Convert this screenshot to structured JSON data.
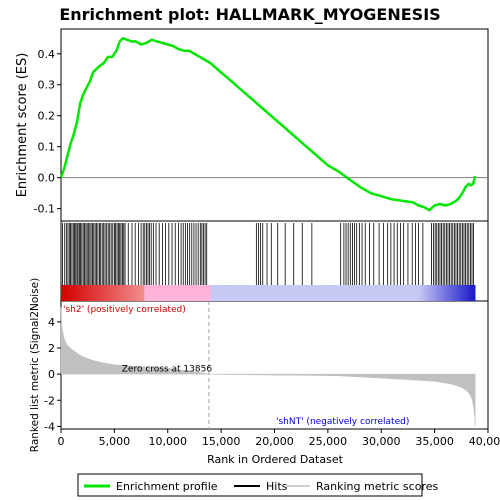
{
  "chart_data": {
    "type": "line",
    "title": "Enrichment plot: HALLMARK_MYOGENESIS",
    "xlabel": "Rank in Ordered Dataset",
    "ylabel_top": "Enrichment score (ES)",
    "ylabel_bottom": "Ranked list metric (Signal2Noise)",
    "xlim": [
      0,
      40000
    ],
    "x_ticks": [
      "0",
      "5,000",
      "10,000",
      "15,000",
      "20,000",
      "25,000",
      "30,000",
      "35,000",
      "40,000"
    ],
    "es_ylim": [
      -0.14,
      0.48
    ],
    "es_ticks": [
      "-0.1",
      "0.0",
      "0.1",
      "0.2",
      "0.3",
      "0.4"
    ],
    "metric_ylim": [
      -4.2,
      5.6
    ],
    "metric_ticks": [
      "-4",
      "-2",
      "0",
      "2",
      "4"
    ],
    "n_ranks": 38800,
    "zero_cross": 13856,
    "zero_cross_label": "Zero cross at 13856",
    "pos_label": "'sh2' (positively correlated)",
    "neg_label": "'shNT' (negatively correlated)",
    "colors": {
      "enrichment_line": "#00e600",
      "hits": "#000000",
      "metric_fill": "#c0c0c0",
      "pos_red": "#d40000",
      "pink": "#ffb3d9",
      "lavender": "#c8c8f5",
      "neg_blue": "#2020c8",
      "pos_label": "#cc0000",
      "neg_label": "#0000cc"
    },
    "enrichment_profile": {
      "x": [
        0,
        300,
        600,
        900,
        1200,
        1500,
        1800,
        2100,
        2400,
        2700,
        3000,
        3300,
        3600,
        4000,
        4400,
        4800,
        5200,
        5500,
        5800,
        6200,
        6600,
        7000,
        7500,
        8000,
        8500,
        9000,
        9500,
        10000,
        10500,
        11000,
        11500,
        12000,
        12500,
        13000,
        13500,
        14000,
        15000,
        16000,
        17000,
        18000,
        19000,
        20000,
        21000,
        22000,
        23000,
        24000,
        25000,
        26000,
        27000,
        28000,
        29000,
        30000,
        31000,
        32000,
        33000,
        33500,
        34000,
        34500,
        35000,
        35500,
        36000,
        36500,
        37000,
        37300,
        37600,
        37900,
        38200,
        38400,
        38600,
        38800
      ],
      "y": [
        0.0,
        0.03,
        0.07,
        0.11,
        0.14,
        0.18,
        0.24,
        0.27,
        0.29,
        0.31,
        0.34,
        0.35,
        0.36,
        0.37,
        0.39,
        0.39,
        0.41,
        0.44,
        0.45,
        0.445,
        0.44,
        0.44,
        0.43,
        0.435,
        0.445,
        0.44,
        0.435,
        0.43,
        0.425,
        0.415,
        0.41,
        0.41,
        0.4,
        0.39,
        0.38,
        0.37,
        0.34,
        0.31,
        0.28,
        0.25,
        0.22,
        0.19,
        0.16,
        0.13,
        0.1,
        0.07,
        0.04,
        0.02,
        -0.005,
        -0.03,
        -0.05,
        -0.06,
        -0.07,
        -0.075,
        -0.08,
        -0.09,
        -0.095,
        -0.105,
        -0.09,
        -0.085,
        -0.09,
        -0.085,
        -0.075,
        -0.065,
        -0.05,
        -0.03,
        -0.02,
        -0.025,
        -0.02,
        0.005
      ]
    },
    "hits": [
      150,
      350,
      500,
      650,
      780,
      900,
      1020,
      1150,
      1260,
      1380,
      1500,
      1600,
      1720,
      1830,
      1950,
      2080,
      2200,
      2330,
      2450,
      2560,
      2700,
      2820,
      2950,
      3070,
      3200,
      3330,
      3460,
      3600,
      3720,
      3860,
      4000,
      4130,
      4280,
      4420,
      4560,
      4700,
      4850,
      5000,
      5120,
      5250,
      5380,
      5500,
      5620,
      5750,
      5880,
      6000,
      6300,
      6650,
      6950,
      7250,
      7500,
      7700,
      7850,
      8000,
      8150,
      8300,
      8450,
      8650,
      8900,
      9200,
      9500,
      9800,
      10100,
      10400,
      10700,
      11000,
      11250,
      11450,
      11650,
      11850,
      12050,
      12250,
      12450,
      12650,
      12850,
      13050,
      13200,
      13350,
      13500,
      13650,
      18300,
      18500,
      18700,
      18900,
      19300,
      19700,
      20300,
      21000,
      21800,
      22600,
      23500,
      26200,
      26500,
      26700,
      26900,
      27100,
      27300,
      27500,
      27700,
      27950,
      28200,
      28500,
      28900,
      29300,
      29800,
      30200,
      30600,
      30900,
      31200,
      31500,
      31800,
      32100,
      32500,
      32900,
      33200,
      33500,
      33900,
      34700,
      34900,
      35050,
      35200,
      35350,
      35500,
      35650,
      35800,
      35950,
      36100,
      36250,
      36400,
      36550,
      36700,
      36850,
      37000,
      37150,
      37300,
      37450,
      37600,
      37750,
      37900,
      38050,
      38200,
      38350,
      38500,
      38650
    ],
    "metric_curve": {
      "x": [
        0,
        100,
        300,
        600,
        1000,
        1500,
        2000,
        3000,
        4000,
        5000,
        6000,
        7000,
        8000,
        9000,
        10000,
        11000,
        12000,
        13000,
        13856,
        15000,
        18000,
        22000,
        26000,
        30000,
        33000,
        35000,
        36500,
        37500,
        38000,
        38300,
        38500,
        38650,
        38750,
        38800
      ],
      "y": [
        5.1,
        3.5,
        2.7,
        2.2,
        1.9,
        1.6,
        1.35,
        1.05,
        0.85,
        0.72,
        0.65,
        0.6,
        0.55,
        0.5,
        0.45,
        0.35,
        0.25,
        0.12,
        0.0,
        -0.03,
        -0.06,
        -0.09,
        -0.13,
        -0.3,
        -0.45,
        -0.55,
        -0.75,
        -1.0,
        -1.25,
        -1.55,
        -1.9,
        -2.5,
        -3.3,
        -4.0
      ]
    },
    "legend": [
      {
        "label": "Enrichment profile",
        "color": "#00e600"
      },
      {
        "label": "Hits",
        "color": "#000000"
      },
      {
        "label": "Ranking metric scores",
        "color": "#c0c0c0"
      }
    ]
  }
}
